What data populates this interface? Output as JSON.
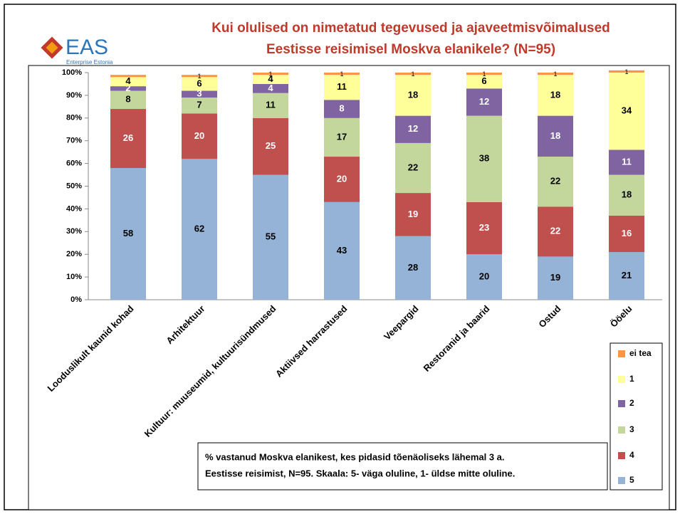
{
  "logo": {
    "name": "EAS",
    "subtitle": "Enterprise Estonia"
  },
  "chart_data": {
    "type": "stacked_bar",
    "title": [
      "Kui olulised on nimetatud tegevused ja ajaveetmisvõimalused",
      "Eestisse reisimisel Moskva elanikele? (N=95)"
    ],
    "categories": [
      "Looduslikult kaunid kohad",
      "Arhitektuur",
      "Kultuur: muuseumid, kultuurisündmused",
      "Aktiivsed harrastused",
      "Veepargid",
      "Restoranid ja baarid",
      "Ostud",
      "Ööelu"
    ],
    "series": [
      {
        "name": "5",
        "color": "#95b3d7",
        "label_color": "#000000",
        "values": [
          58,
          62,
          55,
          43,
          28,
          20,
          19,
          21
        ]
      },
      {
        "name": "4",
        "color": "#c0504d",
        "label_color": "#ffffff",
        "values": [
          26,
          20,
          25,
          20,
          19,
          23,
          22,
          16
        ]
      },
      {
        "name": "3",
        "color": "#c3d69b",
        "label_color": "#000000",
        "values": [
          8,
          7,
          11,
          17,
          22,
          38,
          22,
          18
        ]
      },
      {
        "name": "2",
        "color": "#8064a2",
        "label_color": "#ffffff",
        "values": [
          2,
          3,
          4,
          8,
          12,
          12,
          18,
          11
        ]
      },
      {
        "name": "1",
        "color": "#ffff99",
        "label_color": "#000000",
        "values": [
          4,
          6,
          4,
          11,
          18,
          6,
          18,
          34
        ]
      },
      {
        "name": "ei tea",
        "color": "#f79646",
        "label_color": "#000000",
        "values": [
          1,
          1,
          1,
          1,
          1,
          1,
          1,
          1
        ],
        "value_labels": [
          null,
          "1",
          "1",
          "1",
          "1",
          "1",
          "1",
          "1"
        ]
      }
    ],
    "ylim": [
      0,
      100
    ],
    "yticks": [
      {
        "value": 0,
        "label": "0%"
      },
      {
        "value": 10,
        "label": "10%"
      },
      {
        "value": 20,
        "label": "20%"
      },
      {
        "value": 30,
        "label": "30%"
      },
      {
        "value": 40,
        "label": "40%"
      },
      {
        "value": 50,
        "label": "50%"
      },
      {
        "value": 60,
        "label": "60%"
      },
      {
        "value": 70,
        "label": "70%"
      },
      {
        "value": 80,
        "label": "80%"
      },
      {
        "value": 90,
        "label": "90%"
      },
      {
        "value": 100,
        "label": "100%"
      }
    ],
    "note": [
      "% vastanud Moskva elanikest, kes pidasid tõenäoliseks lähemal 3 a.",
      "Eestisse reisimist, N=95. Skaala: 5- väga oluline, 1- üldse mitte oluline."
    ]
  }
}
